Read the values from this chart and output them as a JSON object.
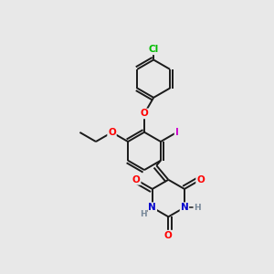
{
  "background_color": "#e8e8e8",
  "bond_color": "#1a1a1a",
  "atom_colors": {
    "O": "#ff0000",
    "N": "#0000cd",
    "Cl": "#00bb00",
    "I": "#cc00cc",
    "H": "#778899",
    "C": "#1a1a1a"
  },
  "figsize": [
    3.0,
    3.0
  ],
  "dpi": 100
}
